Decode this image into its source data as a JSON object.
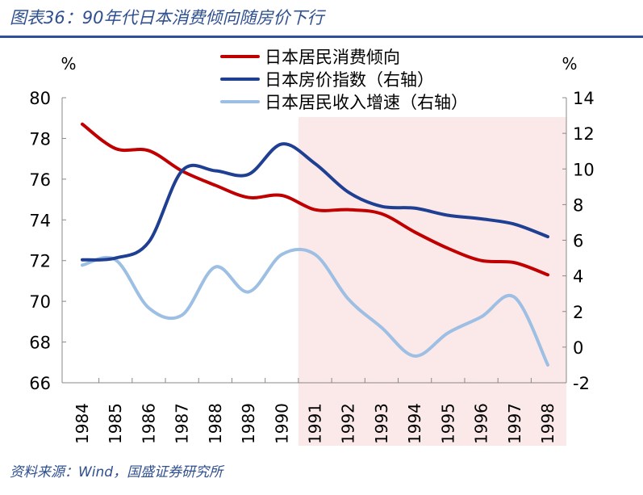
{
  "title": "图表36：90年代日本消费倾向随房价下行",
  "source": "资料来源：Wind，国盛证券研究所",
  "chart_data": {
    "type": "line",
    "title": "",
    "left_unit": "%",
    "right_unit": "%",
    "categories": [
      "1984",
      "1985",
      "1986",
      "1987",
      "1988",
      "1989",
      "1990",
      "1991",
      "1992",
      "1993",
      "1994",
      "1995",
      "1996",
      "1997",
      "1998"
    ],
    "left_axis": {
      "range": [
        66,
        80
      ],
      "ticks": [
        "66",
        "68",
        "70",
        "72",
        "74",
        "76",
        "78",
        "80"
      ]
    },
    "right_axis": {
      "range": [
        -2,
        14
      ],
      "ticks": [
        "-2",
        "0",
        "2",
        "4",
        "6",
        "8",
        "10",
        "12",
        "14"
      ]
    },
    "shaded_region": {
      "from": "1991",
      "to": "1998",
      "color": "#fbe9e9"
    },
    "legend_position": "top-center",
    "series": [
      {
        "name": "日本居民消费倾向",
        "axis": "left",
        "color": "#c00000",
        "values": [
          78.7,
          77.5,
          77.4,
          76.4,
          75.7,
          75.1,
          75.2,
          74.5,
          74.5,
          74.3,
          73.4,
          72.6,
          72.0,
          71.9,
          71.3
        ]
      },
      {
        "name": "日本房价指数（右轴）",
        "axis": "right",
        "color": "#1f3f93",
        "values": [
          4.9,
          5.0,
          5.9,
          9.9,
          9.9,
          9.7,
          11.4,
          10.3,
          8.7,
          7.9,
          7.8,
          7.4,
          7.2,
          6.9,
          6.2
        ]
      },
      {
        "name": "日本居民收入增速（右轴）",
        "axis": "right",
        "color": "#9dbfe3",
        "values": [
          4.6,
          4.9,
          2.2,
          1.8,
          4.5,
          3.1,
          5.2,
          5.2,
          2.7,
          1.1,
          -0.5,
          0.8,
          1.7,
          2.8,
          -1.0
        ]
      }
    ]
  }
}
